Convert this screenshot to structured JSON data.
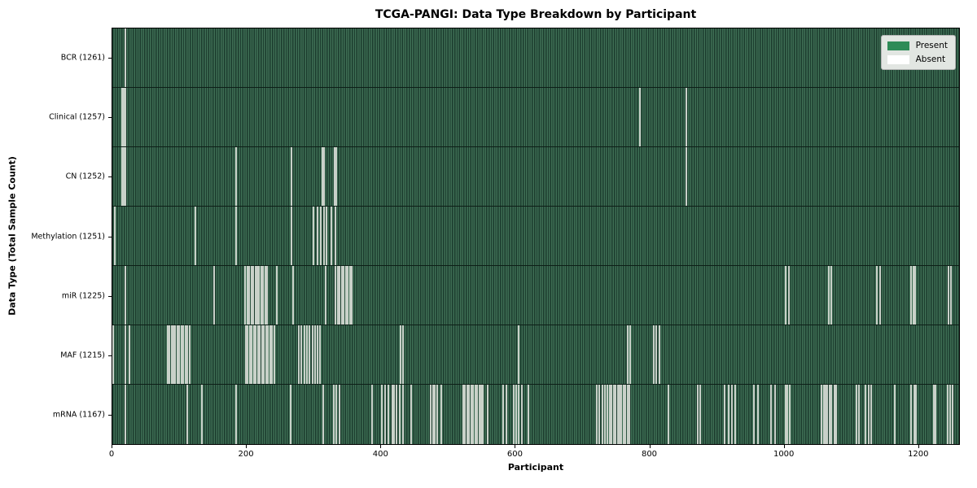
{
  "colors": {
    "present": "#2e8b57",
    "absent": "#ffffff",
    "absent_stripe": "#c9d1c9",
    "bar_dark": "#1c3c2e",
    "bar_light": "#3e6e54",
    "row_divider": "#0d1f17",
    "legend_bg": "#e2e6e2"
  },
  "chart_data": {
    "type": "heatmap",
    "title": "TCGA-PANGI: Data Type Breakdown by Participant",
    "xlabel": "Participant",
    "ylabel": "Data Type (Total Sample Count)",
    "legend_labels": [
      "Present",
      "Absent"
    ],
    "legend_position": "upper right",
    "grid": false,
    "xlim": [
      0,
      1262
    ],
    "x_ticks": [
      0,
      200,
      400,
      600,
      800,
      1000,
      1200
    ],
    "rows": [
      {
        "key": "bcr",
        "label": "BCR (1261)",
        "total": 1261,
        "absent_indices": [
          20
        ]
      },
      {
        "key": "clinical",
        "label": "Clinical (1257)",
        "total": 1257,
        "absent_indices": [
          14,
          17,
          20,
          786,
          856
        ]
      },
      {
        "key": "cn",
        "label": "CN (1252)",
        "total": 1252,
        "absent_indices": [
          14,
          17,
          20,
          185,
          267,
          313,
          316,
          331,
          334,
          856
        ]
      },
      {
        "key": "methylation",
        "label": "Methylation (1251)",
        "total": 1251,
        "absent_indices": [
          4,
          124,
          185,
          267,
          300,
          306,
          311,
          315,
          319,
          326,
          332
        ]
      },
      {
        "key": "mir",
        "label": "miR (1225)",
        "total": 1225,
        "absent_indices": [
          19,
          152,
          198,
          201,
          204,
          207,
          210,
          213,
          216,
          219,
          222,
          225,
          228,
          231,
          245,
          269,
          318,
          333,
          336,
          339,
          342,
          345,
          348,
          351,
          354,
          357,
          1004,
          1008,
          1068,
          1072,
          1140,
          1144,
          1191,
          1194,
          1197,
          1246,
          1250
        ]
      },
      {
        "key": "maf",
        "label": "MAF (1215)",
        "total": 1215,
        "absent_indices": [
          1,
          19,
          25,
          82,
          85,
          88,
          91,
          94,
          97,
          100,
          103,
          106,
          109,
          112,
          115,
          199,
          202,
          205,
          208,
          211,
          214,
          217,
          220,
          223,
          226,
          229,
          232,
          235,
          238,
          241,
          278,
          282,
          286,
          290,
          294,
          298,
          302,
          306,
          310,
          429,
          433,
          605,
          768,
          772,
          807,
          811,
          815
        ]
      },
      {
        "key": "mrna",
        "label": "mRNA (1167)",
        "total": 1167,
        "absent_indices": [
          19,
          112,
          134,
          185,
          266,
          314,
          330,
          334,
          338,
          387,
          402,
          407,
          411,
          417,
          420,
          424,
          428,
          433,
          445,
          475,
          478,
          481,
          484,
          490,
          523,
          526,
          529,
          532,
          535,
          538,
          541,
          544,
          547,
          550,
          552,
          559,
          583,
          587,
          598,
          602,
          605,
          610,
          620,
          722,
          726,
          730,
          734,
          738,
          741,
          744,
          747,
          750,
          753,
          756,
          759,
          762,
          765,
          768,
          771,
          829,
          873,
          876,
          913,
          918,
          924,
          928,
          956,
          962,
          982,
          988,
          1003,
          1006,
          1010,
          1057,
          1060,
          1063,
          1066,
          1069,
          1072,
          1076,
          1079,
          1109,
          1113,
          1123,
          1127,
          1131,
          1166,
          1191,
          1195,
          1198,
          1224,
          1227,
          1245,
          1249,
          1252
        ]
      }
    ]
  }
}
